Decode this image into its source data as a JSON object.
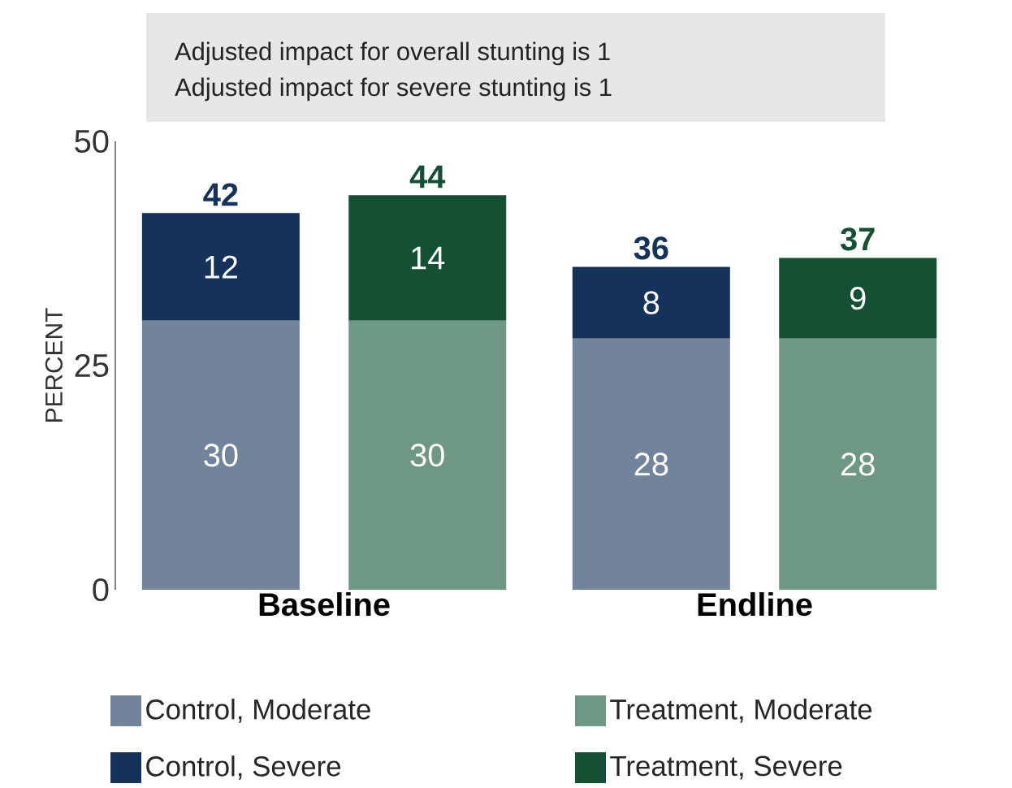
{
  "chart_data": [
    {
      "type": "bar",
      "stacked": true,
      "annotations": [
        "Adjusted impact for overall stunting is 1",
        "Adjusted impact for severe stunting is 1"
      ],
      "ylabel": "PERCENT",
      "categories": [
        "Baseline",
        "Endline"
      ],
      "series": [
        {
          "name": "Control, Moderate",
          "color": "#71849b",
          "values": [
            30,
            28
          ]
        },
        {
          "name": "Control, Severe",
          "color": "#14325a",
          "values": [
            12,
            8
          ]
        }
      ],
      "totals": [
        "42",
        "36"
      ],
      "ylim": [
        0,
        50
      ],
      "yticks": [
        0,
        25,
        50
      ],
      "data_labels": true,
      "legend": "bottom"
    },
    {
      "type": "bar",
      "stacked": true,
      "categories": [
        null,
        null
      ],
      "series": [
        {
          "name": "Treatment, Moderate",
          "color": "#6e9784",
          "values": [
            30,
            28
          ]
        },
        {
          "name": "Treatment, Severe",
          "color": "#135034",
          "values": [
            14,
            9
          ]
        }
      ],
      "totals": [
        "44",
        "37"
      ],
      "ylim": [
        0,
        50
      ],
      "tick_labels": false,
      "data_labels": true,
      "legend": "bottom"
    }
  ]
}
